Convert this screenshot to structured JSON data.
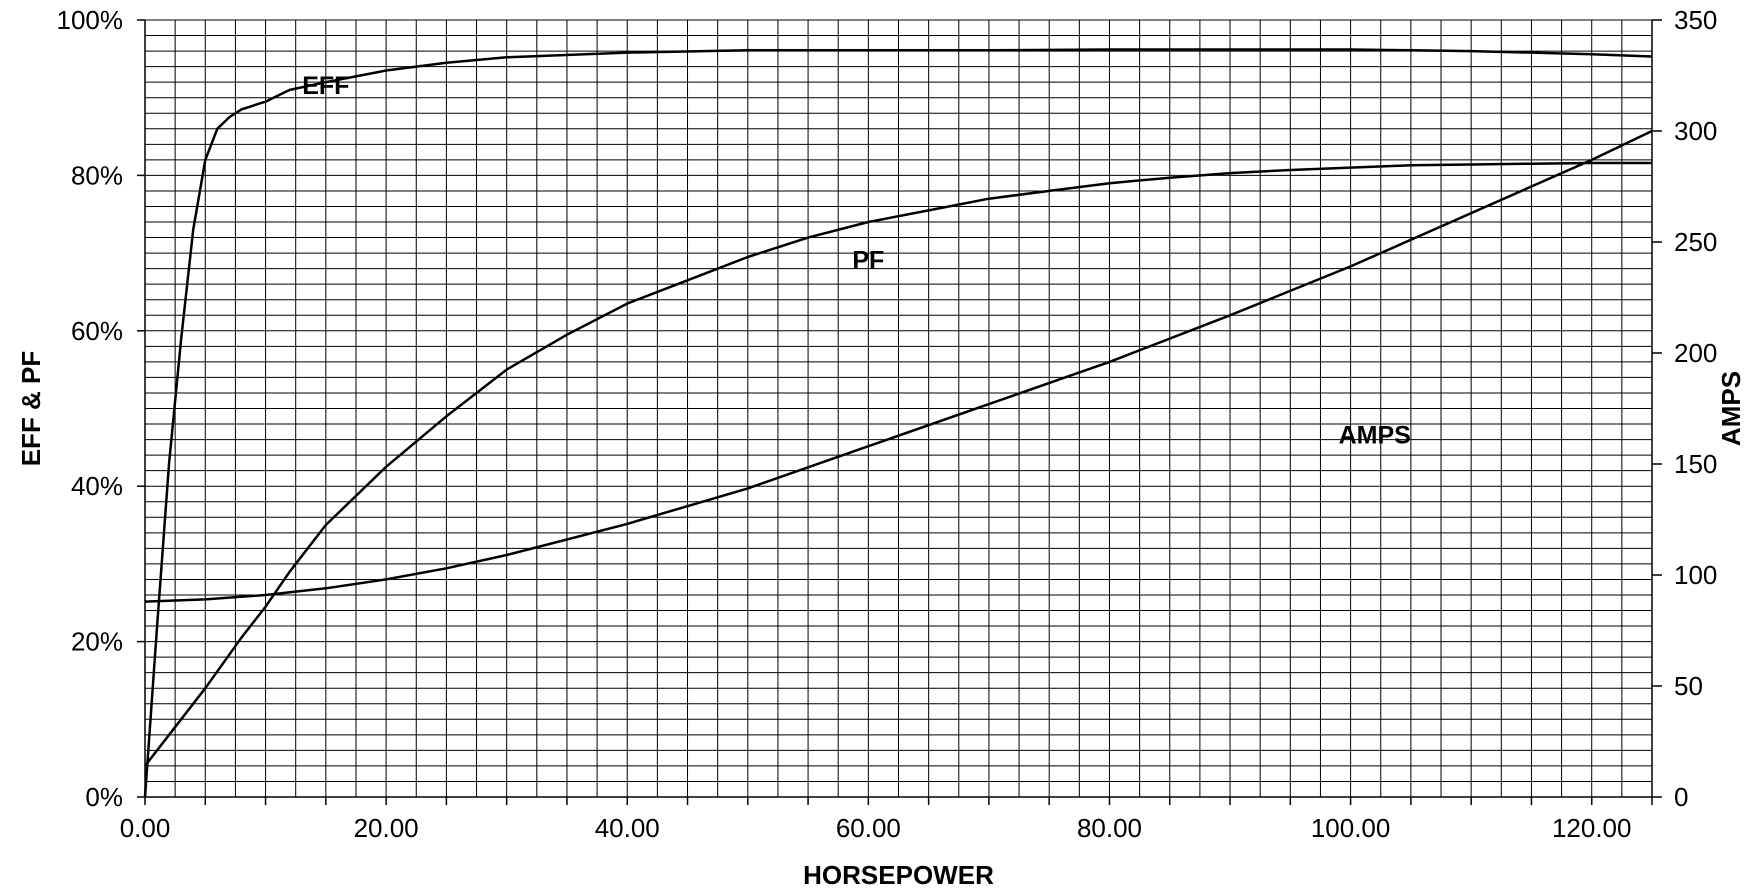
{
  "chart_data": {
    "type": "line",
    "xlabel": "HORSEPOWER",
    "ylabel_left": "EFF & PF",
    "ylabel_right": "AMPS",
    "xlim": [
      0,
      125
    ],
    "ylim_left": [
      0,
      100
    ],
    "ylim_right": [
      0,
      350
    ],
    "x_ticks": [
      "0.00",
      "20.00",
      "40.00",
      "60.00",
      "80.00",
      "100.00",
      "120.00"
    ],
    "y_left_ticks": [
      "0%",
      "20%",
      "40%",
      "60%",
      "80%",
      "100%"
    ],
    "y_right_ticks": [
      "0",
      "50",
      "100",
      "150",
      "200",
      "250",
      "300",
      "350"
    ],
    "grid": true,
    "series": [
      {
        "name": "EFF",
        "axis": "left",
        "x": [
          0,
          1,
          2,
          3,
          4,
          5,
          6,
          7,
          8,
          10,
          12,
          15,
          20,
          25,
          30,
          40,
          50,
          60,
          70,
          80,
          90,
          100,
          105,
          110,
          115,
          120,
          125
        ],
        "y": [
          0,
          22,
          43,
          59,
          73,
          82,
          86,
          87.5,
          88.5,
          89.5,
          91,
          92,
          93.5,
          94.5,
          95.2,
          95.8,
          96.1,
          96.1,
          96.1,
          96.2,
          96.2,
          96.2,
          96.1,
          96,
          95.8,
          95.6,
          95.3
        ]
      },
      {
        "name": "PF",
        "axis": "left",
        "x": [
          0,
          2,
          5,
          8,
          10,
          12,
          15,
          20,
          25,
          30,
          35,
          40,
          45,
          50,
          55,
          60,
          65,
          70,
          75,
          80,
          85,
          90,
          95,
          100,
          105,
          110,
          115,
          120,
          125
        ],
        "y": [
          4,
          8,
          14,
          20.5,
          24.5,
          29,
          35,
          42.5,
          49,
          55,
          59.5,
          63.5,
          66.5,
          69.5,
          72,
          74,
          75.5,
          77,
          78,
          79,
          79.7,
          80.3,
          80.7,
          81,
          81.3,
          81.4,
          81.5,
          81.6,
          81.6
        ]
      },
      {
        "name": "AMPS",
        "axis": "right",
        "x": [
          0,
          5,
          10,
          15,
          20,
          25,
          30,
          40,
          50,
          60,
          70,
          80,
          90,
          100,
          110,
          120,
          125
        ],
        "y": [
          88,
          89,
          91,
          94,
          98,
          103,
          109,
          123,
          139,
          158,
          177,
          196,
          217,
          239,
          263,
          287,
          300
        ]
      }
    ],
    "annotations": [
      {
        "text": "EFF",
        "x": 15,
        "y": 90.5
      },
      {
        "text": "PF",
        "x": 60,
        "y": 68
      },
      {
        "text": "AMPS",
        "x": 102,
        "y": 45.5
      }
    ]
  }
}
